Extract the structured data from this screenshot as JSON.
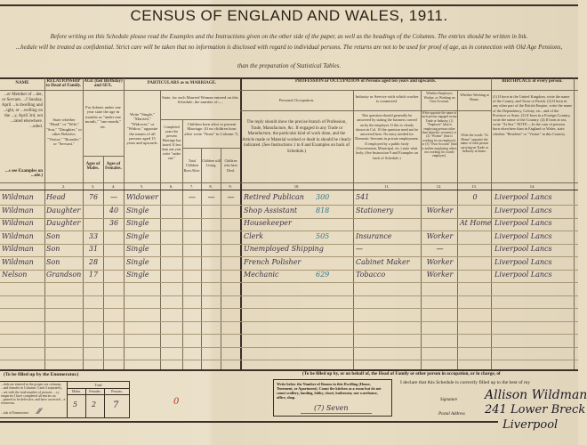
{
  "title": "CENSUS OF ENGLAND AND WALES, 1911.",
  "instruction1": "Before writing on this Schedule please read the Examples and the Instructions given on the other side of the paper, as well as the headings of the Columns. The entries should be written in Ink.",
  "instruction2": "...hedule will be treated as confidential. Strict care will be taken that no information is disclosed with regard to individual persons. The returns are not to be used for proof of age, as in connection with Old Age Pensions,",
  "instruction3": "than the preparation of Statistical Tables.",
  "headers": {
    "name": "NAME",
    "name_desc": "...er Member of ...der, or Servant. ...f Sunday, April ...is dwelling and ...ight, or ...welling on the ...y, April 3rd, not ...rated elsewhere. ...uded.",
    "name_note": "...s see Examples on ...ule.)",
    "relationship": "RELATIONSHIP to Head of Family.",
    "relationship_desc": "State whether \"Head,\" or \"Wife,\" \"Son,\" \"Daughter,\" or other Relative, \"Visitor,\" \"Boarder,\" or \"Servant.\"",
    "age": "AGE (last Birthday) and SEX.",
    "age_desc": "For Infants under one year state the age in months as \"under one month,\" \"one month,\" etc.",
    "age_males": "Ages of Males.",
    "age_females": "Ages of Females.",
    "marriage": "PARTICULARS as to MARRIAGE.",
    "marital_desc": "Write \"Single,\" \"Married,\" \"Widower,\" or \"Widow,\" opposite the names of all persons aged 15 years and upwards.",
    "married_women": "State, for each Married Woman entered on this Schedule, the number of:—",
    "years_married": "Completed years the present Marriage has lasted. If less than one year write \"under one.\"",
    "children_born": "Children born alive to present Marriage. (If no children born alive write \"None\" in Column 7).",
    "total_born": "Total Children Born Alive.",
    "still_living": "Children still Living.",
    "died": "Children who have Died.",
    "occupation_group": "PROFESSION or OCCUPATION of Persons aged ten years and upwards.",
    "personal_occupation": "Personal Occupation.",
    "occupation_desc": "The reply should show the precise branch of Profession, Trade, Manufacture, &c. If engaged in any Trade or Manufacture, the particular kind of work done, and the Article made or Material worked or dealt in should be clearly indicated. (See Instructions 1 to 8 and Examples on back of Schedule.)",
    "industry": "Industry or Service with which worker is connected.",
    "industry_desc": "This question should generally be answered by stating the business carried on by the employer. If this is clearly shown in Col. 10 the question need not be answered here. No entry needed for Domestic Servants in private employment. If employed by a public body (Government, Municipal, etc.) state what body. (See Instruction 9 and Examples on back of Schedule.)",
    "employer": "Whether Employer, Worker, or Working on Own Account.",
    "employer_desc": "Write opposite the name of each person engaged in any Trade or Industry, (1) \"Employer\" (that is employing persons other than domestic servants), or (2) \"Worker\" (that is working for an employer), or (3) \"Own Account\" (that is neither employing others nor working for a trade employer).",
    "at_home": "Whether Working at Home.",
    "at_home_desc": "Write the words \"At Home\" opposite the name of each person carrying on Trade or Industry at home.",
    "birthplace": "BIRTHPLACE of every person.",
    "birthplace_desc": "(1) If born in the United Kingdom, write the name of the County, and Town or Parish. (2) If born in any other part of the British Empire, write the name of the Dependency, Colony, etc., and of the Province or State. (3) If born in a Foreign Country, write the name of the Country. (4) If born at sea, write \"At Sea.\" NOTE.—In the case of persons born elsewhere than in England or Wales, state whether \"Resident\" or \"Visitor\" in this Country.",
    "col_numbers": [
      "2.",
      "3.",
      "4.",
      "5.",
      "6.",
      "7.",
      "8.",
      "9.",
      "10.",
      "11.",
      "12.",
      "13.",
      "14."
    ]
  },
  "rows": [
    {
      "name": "Wildman",
      "rel": "Head",
      "male": "76",
      "female": "—",
      "marital": "Widower",
      "total": "—",
      "living": "—",
      "dead": "—",
      "occ": "Retired Publican",
      "code": "300",
      "industry": "541",
      "employer": "",
      "home": "0",
      "birth": "Liverpool Lancs"
    },
    {
      "name": "Wildman",
      "rel": "Daughter",
      "male": "",
      "female": "40",
      "marital": "Single",
      "total": "",
      "living": "",
      "dead": "",
      "occ": "Shop Assistant",
      "code": "818",
      "industry": "Stationery",
      "employer": "Worker",
      "home": "",
      "birth": "Liverpool Lancs"
    },
    {
      "name": "Wildman",
      "rel": "Daughter",
      "male": "",
      "female": "36",
      "marital": "Single",
      "total": "",
      "living": "",
      "dead": "",
      "occ": "Housekeeper",
      "code": "",
      "industry": "",
      "employer": "",
      "home": "At Home",
      "birth": "Liverpool Lancs"
    },
    {
      "name": "Wildman",
      "rel": "Son",
      "male": "33",
      "female": "",
      "marital": "Single",
      "total": "",
      "living": "",
      "dead": "",
      "occ": "Clerk",
      "code": "505",
      "industry": "Insurance",
      "employer": "Worker",
      "home": "",
      "birth": "Liverpool Lancs"
    },
    {
      "name": "Wildman",
      "rel": "Son",
      "male": "31",
      "female": "",
      "marital": "Single",
      "total": "",
      "living": "",
      "dead": "",
      "occ": "Unemployed Shipping",
      "code": "",
      "industry": "—",
      "employer": "—",
      "home": "",
      "birth": "Liverpool Lancs"
    },
    {
      "name": "Wildman",
      "rel": "Son",
      "male": "28",
      "female": "",
      "marital": "Single",
      "total": "",
      "living": "",
      "dead": "",
      "occ": "French Polisher",
      "code": "",
      "industry": "Cabinet Maker",
      "employer": "Worker",
      "home": "",
      "birth": "Liverpool Lancs"
    },
    {
      "name": "Nelson",
      "rel": "Grandson",
      "male": "17",
      "female": "",
      "marital": "Single",
      "total": "",
      "living": "",
      "dead": "",
      "occ": "Mechanic",
      "code": "629",
      "industry": "Tobacco",
      "employer": "Worker",
      "home": "",
      "birth": "Liverpool Lancs"
    }
  ],
  "enumerator": {
    "heading": "(To be filled up by the Enumerator.)",
    "text": "...dule are entered in the proper sex columns, ...and females in Columns 3 and 4 separately, ...ree with the total number of persons. ...ry enquiries I have completed all entries on ...peared to be defective, and have corrected ...e erroneous.",
    "initials_label": "...ials of Enumerator",
    "total_label": "Total",
    "males_label": "Males.",
    "females_label": "Females.",
    "persons_label": "Persons.",
    "males": "5",
    "females": "2",
    "persons": "7",
    "mark": "0"
  },
  "occupier": {
    "heading": "(To be filled up by, or on behalf of, the Head of Family or other person in occupation, or in charge, of",
    "rooms_text": "Write below the Number of Rooms in this Dwelling (House, Tenement, or Apartment). Count the kitchen as a room but do not count scullery, landing, lobby, closet, bathroom; nor warehouse, office, shop.",
    "rooms": "(7) Seven",
    "declaration": "I declare that this Schedule is correctly filled up to the best of my",
    "signature_label": "Signature",
    "signature": "Allison Wildman",
    "address_label": "Postal Address",
    "address": "241 Lower Breck",
    "address2": "Liverpool"
  }
}
